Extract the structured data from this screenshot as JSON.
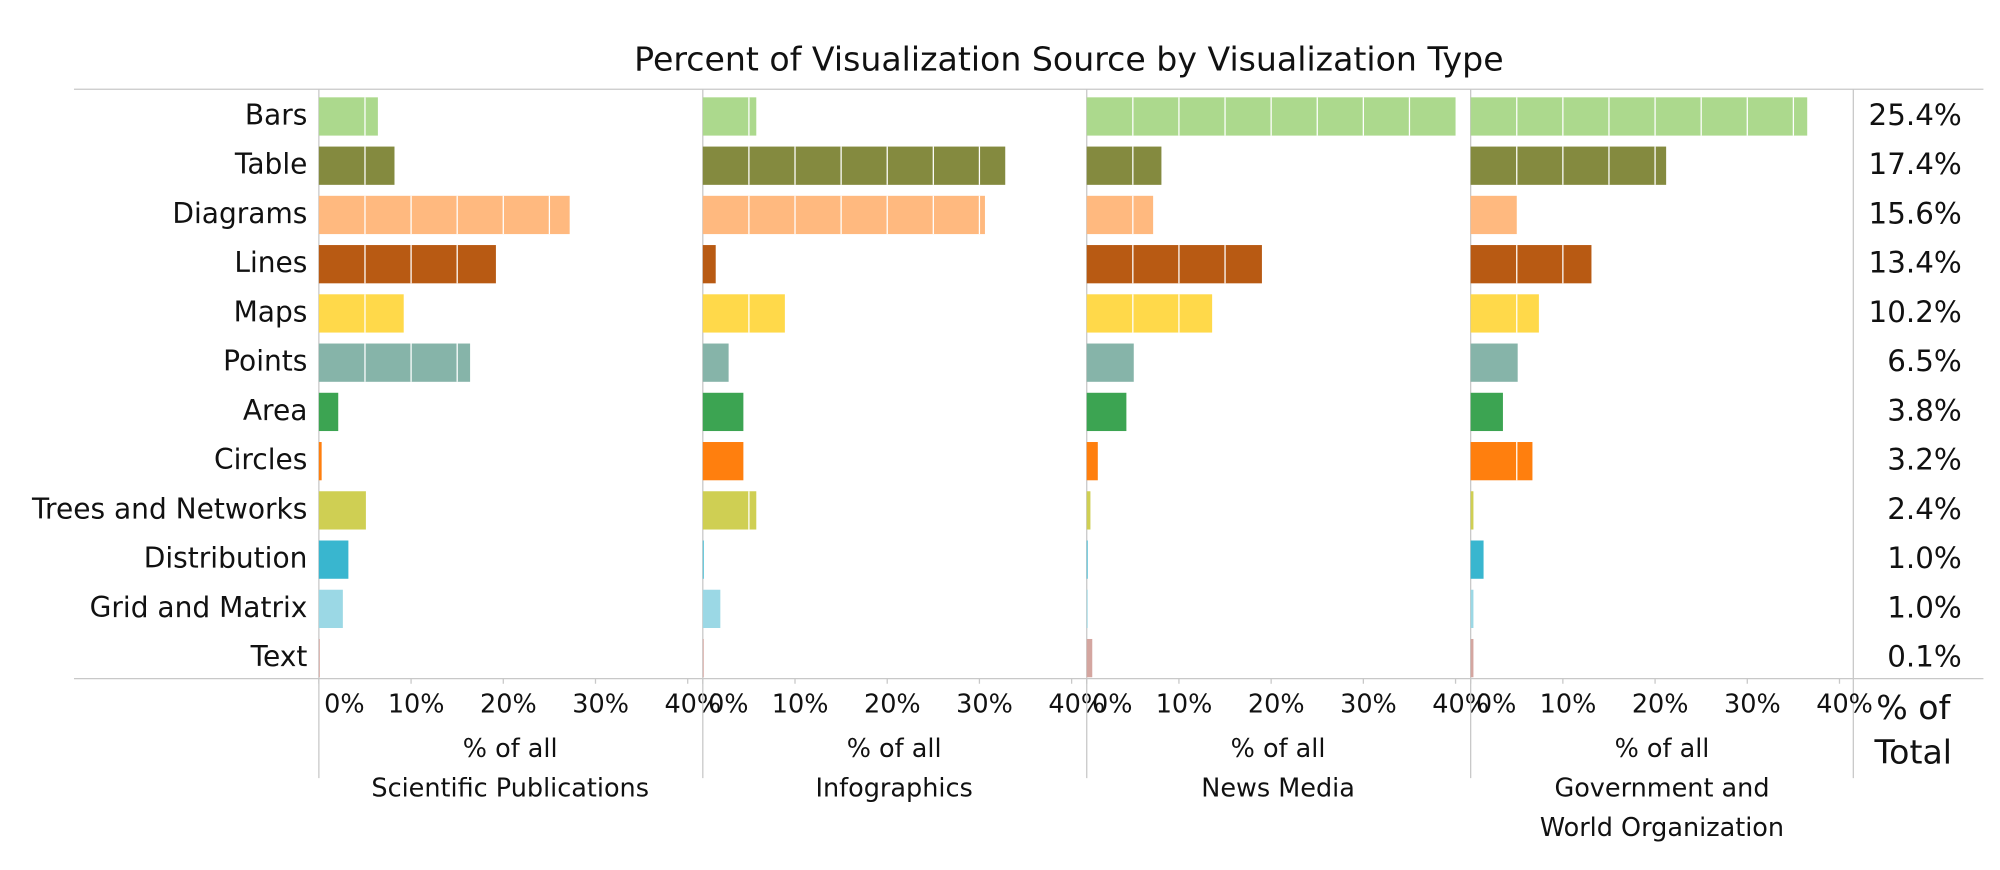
{
  "chart_data": {
    "type": "bar",
    "title": "Percent of Visualization Source by Visualization Type",
    "categories": [
      "Bars",
      "Table",
      "Diagrams",
      "Lines",
      "Maps",
      "Points",
      "Area",
      "Circles",
      "Trees and Networks",
      "Distribution",
      "Grid and Matrix",
      "Text"
    ],
    "colors": [
      "#acd98d",
      "#848a3f",
      "#ffb97f",
      "#b85a13",
      "#ffd94a",
      "#86b4a9",
      "#3ca452",
      "#ff7f0e",
      "#cfcf53",
      "#39b6cf",
      "#9bd8e5",
      "#d4a6a0"
    ],
    "xlim": [
      0,
      41.5
    ],
    "xticks": [
      {
        "value": 0,
        "label": "0%"
      },
      {
        "value": 10,
        "label": "10%"
      },
      {
        "value": 20,
        "label": "20%"
      },
      {
        "value": 30,
        "label": "30%"
      },
      {
        "value": 40,
        "label": "40%"
      }
    ],
    "panels": [
      {
        "xlabel": [
          "% of all",
          "Scientific Publications"
        ],
        "values": [
          6.4,
          8.2,
          27.2,
          19.2,
          9.2,
          16.4,
          2.1,
          0.3,
          5.1,
          3.2,
          2.6,
          0.1
        ]
      },
      {
        "xlabel": [
          "% of all",
          "Infographics"
        ],
        "values": [
          5.8,
          32.8,
          30.6,
          1.4,
          8.9,
          2.8,
          4.4,
          4.4,
          5.8,
          0.1,
          1.9,
          0.1
        ]
      },
      {
        "xlabel": [
          "% of all",
          "News Media"
        ],
        "values": [
          40.0,
          8.1,
          7.2,
          19.0,
          13.6,
          5.1,
          4.3,
          1.2,
          0.4,
          0.1,
          0.1,
          0.6
        ]
      },
      {
        "xlabel": [
          "% of all",
          "Government and",
          "World Organization"
        ],
        "values": [
          36.5,
          21.2,
          5.0,
          13.1,
          7.4,
          5.1,
          3.5,
          6.7,
          0.3,
          1.4,
          0.3,
          0.3
        ]
      }
    ],
    "totals": {
      "label": [
        "% of",
        "Total"
      ],
      "values": [
        25.4,
        17.4,
        15.6,
        13.4,
        10.2,
        6.5,
        3.8,
        3.2,
        2.4,
        1.0,
        1.0,
        0.1
      ],
      "value_labels": [
        "25.4%",
        "17.4%",
        "15.6%",
        "13.4%",
        "10.2%",
        "6.5%",
        "3.8%",
        "3.2%",
        "2.4%",
        "1.0%",
        "1.0%",
        "0.1%"
      ]
    }
  }
}
